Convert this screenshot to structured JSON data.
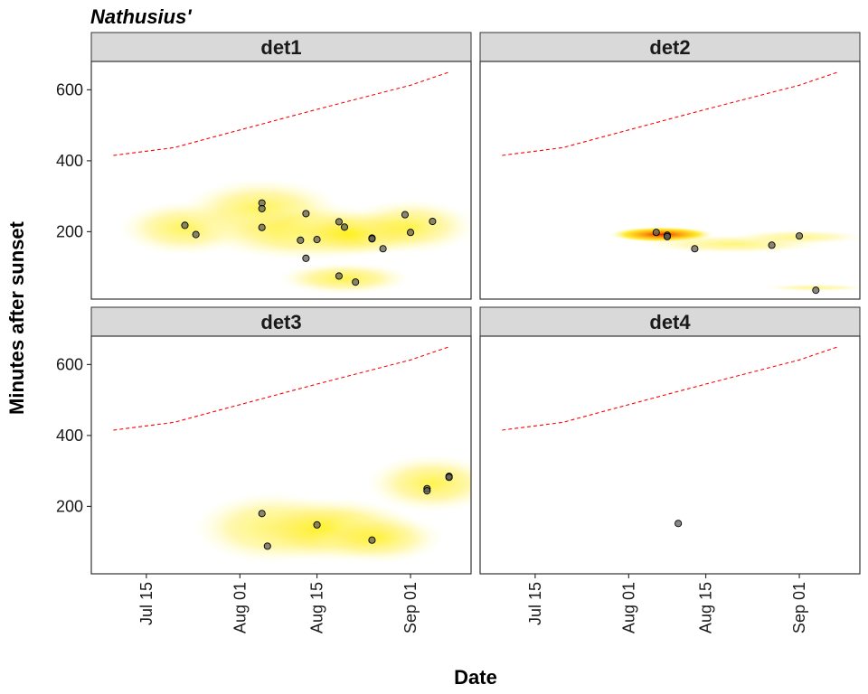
{
  "chart_data": {
    "type": "scatter",
    "title": "Nathusius'",
    "xlabel": "Date",
    "ylabel": "Minutes after sunset",
    "x_ticks": [
      {
        "label": "Jul 15",
        "date": "07-15"
      },
      {
        "label": "Aug 01",
        "date": "08-01"
      },
      {
        "label": "Aug 15",
        "date": "08-15"
      },
      {
        "label": "Sep 01",
        "date": "09-01"
      }
    ],
    "y_ticks": [
      200,
      400,
      600
    ],
    "ylim": [
      10,
      680
    ],
    "xlim": [
      "07-05",
      "09-12"
    ],
    "grid": false,
    "colors": {
      "reference_line": "#ff0000",
      "density_low": "#ffffcc",
      "density_mid": "#ffee00",
      "density_high": "#e03000",
      "point": "#555555",
      "strip": "#d9d9d9"
    },
    "reference_line": {
      "style": "dashed",
      "points": [
        {
          "date": "07-09",
          "y": 415
        },
        {
          "date": "07-20",
          "y": 437
        },
        {
          "date": "08-01",
          "y": 487
        },
        {
          "date": "08-15",
          "y": 545
        },
        {
          "date": "09-01",
          "y": 613
        },
        {
          "date": "09-08",
          "y": 650
        }
      ]
    },
    "panels": [
      {
        "name": "det1",
        "points": [
          {
            "date": "07-22",
            "y": 218
          },
          {
            "date": "07-24",
            "y": 192
          },
          {
            "date": "08-05",
            "y": 281
          },
          {
            "date": "08-05",
            "y": 265
          },
          {
            "date": "08-05",
            "y": 212
          },
          {
            "date": "08-12",
            "y": 176
          },
          {
            "date": "08-13",
            "y": 251
          },
          {
            "date": "08-13",
            "y": 125
          },
          {
            "date": "08-15",
            "y": 178
          },
          {
            "date": "08-19",
            "y": 228
          },
          {
            "date": "08-19",
            "y": 75
          },
          {
            "date": "08-20",
            "y": 213
          },
          {
            "date": "08-22",
            "y": 58
          },
          {
            "date": "08-25",
            "y": 182
          },
          {
            "date": "08-25",
            "y": 180
          },
          {
            "date": "08-27",
            "y": 152
          },
          {
            "date": "08-31",
            "y": 248
          },
          {
            "date": "09-01",
            "y": 198
          },
          {
            "date": "09-05",
            "y": 229
          }
        ],
        "density": [
          {
            "date": "07-22",
            "y": 210,
            "level": 0.3,
            "sd": [
              5,
              38
            ]
          },
          {
            "date": "08-05",
            "y": 260,
            "level": 0.35,
            "sd": [
              6,
              45
            ]
          },
          {
            "date": "08-13",
            "y": 200,
            "level": 0.4,
            "sd": [
              8,
              40
            ]
          },
          {
            "date": "08-22",
            "y": 195,
            "level": 0.55,
            "sd": [
              6,
              32
            ]
          },
          {
            "date": "08-20",
            "y": 68,
            "level": 0.35,
            "sd": [
              5,
              22
            ]
          },
          {
            "date": "09-01",
            "y": 215,
            "level": 0.3,
            "sd": [
              5,
              38
            ]
          }
        ]
      },
      {
        "name": "det2",
        "points": [
          {
            "date": "08-06",
            "y": 198
          },
          {
            "date": "08-08",
            "y": 190
          },
          {
            "date": "08-08",
            "y": 186
          },
          {
            "date": "08-13",
            "y": 152
          },
          {
            "date": "08-27",
            "y": 162
          },
          {
            "date": "09-01",
            "y": 188
          },
          {
            "date": "09-04",
            "y": 35
          }
        ],
        "density": [
          {
            "date": "08-07",
            "y": 192,
            "level": 1.0,
            "sd": [
              4,
              11
            ]
          },
          {
            "date": "08-20",
            "y": 165,
            "level": 0.18,
            "sd": [
              7,
              13
            ]
          },
          {
            "date": "09-01",
            "y": 185,
            "level": 0.12,
            "sd": [
              5,
              10
            ]
          },
          {
            "date": "09-04",
            "y": 42,
            "level": 0.1,
            "sd": [
              4,
              5
            ]
          }
        ]
      },
      {
        "name": "det3",
        "points": [
          {
            "date": "08-05",
            "y": 180
          },
          {
            "date": "08-06",
            "y": 88
          },
          {
            "date": "08-15",
            "y": 148
          },
          {
            "date": "08-25",
            "y": 105
          },
          {
            "date": "09-04",
            "y": 250
          },
          {
            "date": "09-04",
            "y": 244
          },
          {
            "date": "09-08",
            "y": 285
          },
          {
            "date": "09-08",
            "y": 282
          }
        ],
        "density": [
          {
            "date": "08-07",
            "y": 140,
            "level": 0.3,
            "sd": [
              6,
              50
            ]
          },
          {
            "date": "08-17",
            "y": 135,
            "level": 0.5,
            "sd": [
              7,
              45
            ]
          },
          {
            "date": "08-26",
            "y": 110,
            "level": 0.3,
            "sd": [
              5,
              35
            ]
          },
          {
            "date": "09-05",
            "y": 265,
            "level": 0.35,
            "sd": [
              5,
              40
            ]
          }
        ]
      },
      {
        "name": "det4",
        "points": [
          {
            "date": "08-10",
            "y": 152
          }
        ],
        "density": []
      }
    ]
  }
}
